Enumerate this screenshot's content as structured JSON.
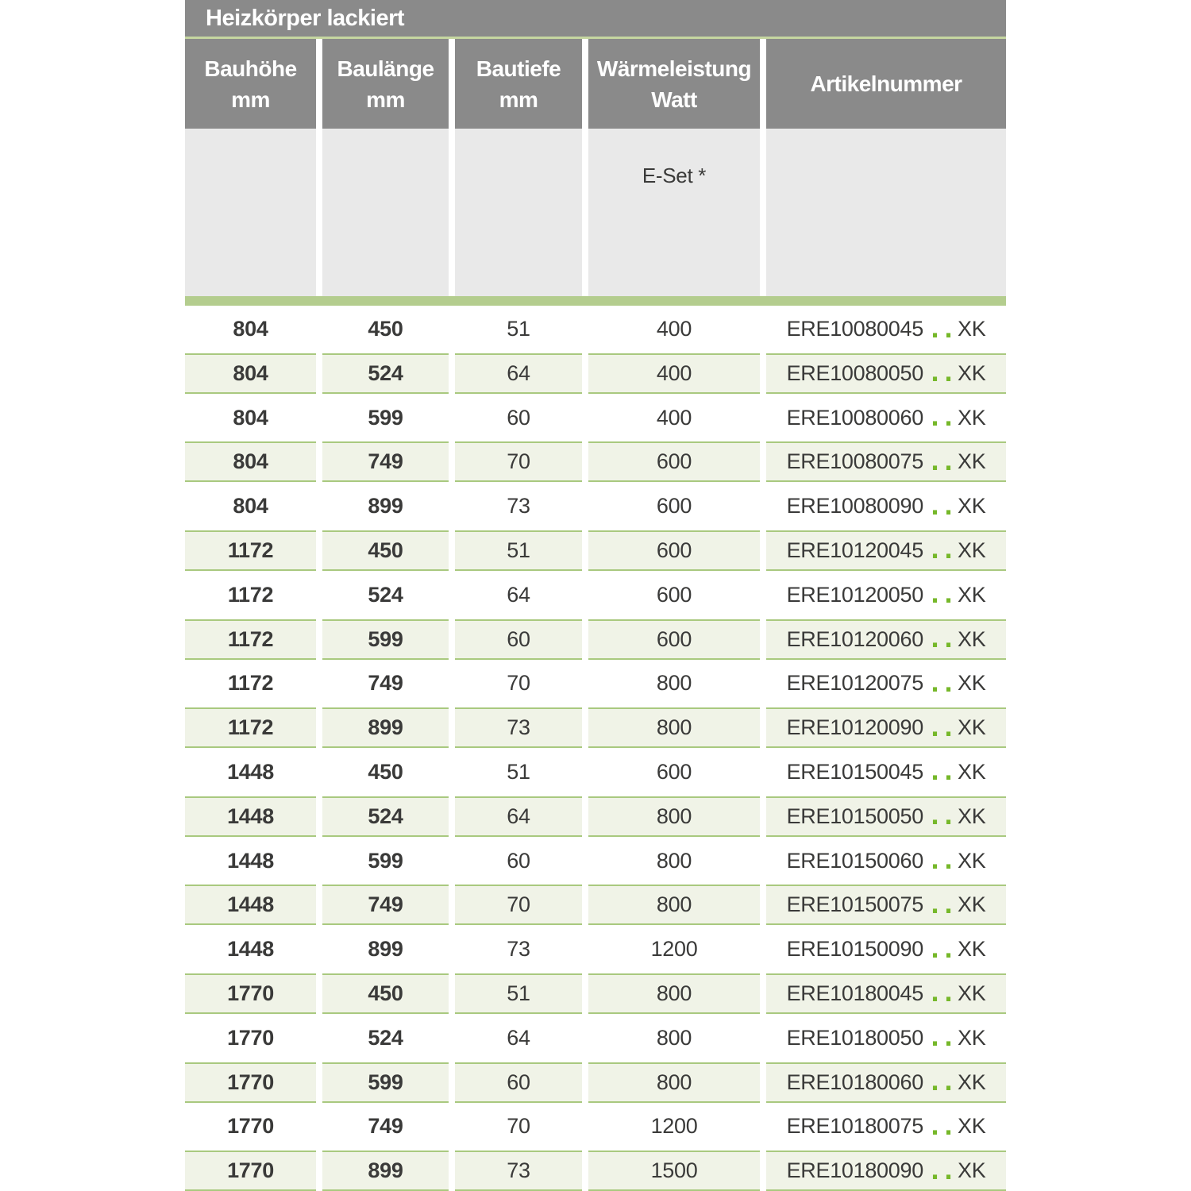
{
  "title": "Heizkörper lackiert",
  "columns": [
    {
      "label": "Bauhöhe",
      "unit": "mm"
    },
    {
      "label": "Baulänge",
      "unit": "mm"
    },
    {
      "label": "Bautiefe",
      "unit": "mm"
    },
    {
      "label": "Wärmeleistung",
      "unit": "Watt"
    },
    {
      "label": "Artikelnummer",
      "unit": ""
    }
  ],
  "subheader": {
    "eset_label": "E-Set *"
  },
  "artikel": {
    "dots": "..",
    "suffix": "XK"
  },
  "rows": [
    {
      "bauhoehe": "804",
      "baulaenge": "450",
      "bautiefe": "51",
      "watt": "400",
      "artikel_code": "ERE10080045"
    },
    {
      "bauhoehe": "804",
      "baulaenge": "524",
      "bautiefe": "64",
      "watt": "400",
      "artikel_code": "ERE10080050"
    },
    {
      "bauhoehe": "804",
      "baulaenge": "599",
      "bautiefe": "60",
      "watt": "400",
      "artikel_code": "ERE10080060"
    },
    {
      "bauhoehe": "804",
      "baulaenge": "749",
      "bautiefe": "70",
      "watt": "600",
      "artikel_code": "ERE10080075"
    },
    {
      "bauhoehe": "804",
      "baulaenge": "899",
      "bautiefe": "73",
      "watt": "600",
      "artikel_code": "ERE10080090"
    },
    {
      "bauhoehe": "1172",
      "baulaenge": "450",
      "bautiefe": "51",
      "watt": "600",
      "artikel_code": "ERE10120045"
    },
    {
      "bauhoehe": "1172",
      "baulaenge": "524",
      "bautiefe": "64",
      "watt": "600",
      "artikel_code": "ERE10120050"
    },
    {
      "bauhoehe": "1172",
      "baulaenge": "599",
      "bautiefe": "60",
      "watt": "600",
      "artikel_code": "ERE10120060"
    },
    {
      "bauhoehe": "1172",
      "baulaenge": "749",
      "bautiefe": "70",
      "watt": "800",
      "artikel_code": "ERE10120075"
    },
    {
      "bauhoehe": "1172",
      "baulaenge": "899",
      "bautiefe": "73",
      "watt": "800",
      "artikel_code": "ERE10120090"
    },
    {
      "bauhoehe": "1448",
      "baulaenge": "450",
      "bautiefe": "51",
      "watt": "600",
      "artikel_code": "ERE10150045"
    },
    {
      "bauhoehe": "1448",
      "baulaenge": "524",
      "bautiefe": "64",
      "watt": "800",
      "artikel_code": "ERE10150050"
    },
    {
      "bauhoehe": "1448",
      "baulaenge": "599",
      "bautiefe": "60",
      "watt": "800",
      "artikel_code": "ERE10150060"
    },
    {
      "bauhoehe": "1448",
      "baulaenge": "749",
      "bautiefe": "70",
      "watt": "800",
      "artikel_code": "ERE10150075"
    },
    {
      "bauhoehe": "1448",
      "baulaenge": "899",
      "bautiefe": "73",
      "watt": "1200",
      "artikel_code": "ERE10150090"
    },
    {
      "bauhoehe": "1770",
      "baulaenge": "450",
      "bautiefe": "51",
      "watt": "800",
      "artikel_code": "ERE10180045"
    },
    {
      "bauhoehe": "1770",
      "baulaenge": "524",
      "bautiefe": "64",
      "watt": "800",
      "artikel_code": "ERE10180050"
    },
    {
      "bauhoehe": "1770",
      "baulaenge": "599",
      "bautiefe": "60",
      "watt": "800",
      "artikel_code": "ERE10180060"
    },
    {
      "bauhoehe": "1770",
      "baulaenge": "749",
      "bautiefe": "70",
      "watt": "1200",
      "artikel_code": "ERE10180075"
    },
    {
      "bauhoehe": "1770",
      "baulaenge": "899",
      "bautiefe": "73",
      "watt": "1500",
      "artikel_code": "ERE10180090"
    }
  ],
  "colors": {
    "header_gray": "#8a8a8a",
    "header_text": "#ffffff",
    "title_underline_green": "#c5d6a0",
    "subheader_gray": "#e9e9e9",
    "divider_green": "#b4cd8e",
    "row_shade_green": "#f0f3e7",
    "row_border_green": "#a9c97f",
    "text_dark": "#3a3a39",
    "dot_green": "#76b82a"
  }
}
